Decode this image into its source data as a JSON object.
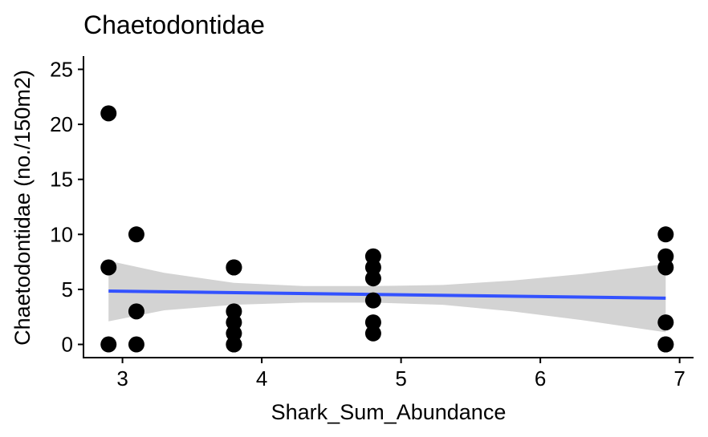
{
  "chart_data": {
    "type": "scatter",
    "title": "Chaetodontidae",
    "xlabel": "Shark_Sum_Abundance",
    "ylabel": "Chaetodontidae (no./150m2)",
    "xlim": [
      2.72,
      7.1
    ],
    "ylim": [
      -1.2,
      26.2
    ],
    "xticks": [
      3,
      4,
      5,
      6,
      7
    ],
    "yticks": [
      0,
      5,
      10,
      15,
      20,
      25
    ],
    "grid": false,
    "legend": "none",
    "points": [
      {
        "x": 2.9,
        "y": 21
      },
      {
        "x": 2.9,
        "y": 7
      },
      {
        "x": 2.9,
        "y": 0
      },
      {
        "x": 3.1,
        "y": 10
      },
      {
        "x": 3.1,
        "y": 3
      },
      {
        "x": 3.1,
        "y": 0
      },
      {
        "x": 3.8,
        "y": 7
      },
      {
        "x": 3.8,
        "y": 7
      },
      {
        "x": 3.8,
        "y": 3
      },
      {
        "x": 3.8,
        "y": 2
      },
      {
        "x": 3.8,
        "y": 1
      },
      {
        "x": 3.8,
        "y": 0
      },
      {
        "x": 3.8,
        "y": 0
      },
      {
        "x": 4.8,
        "y": 8
      },
      {
        "x": 4.8,
        "y": 7
      },
      {
        "x": 4.8,
        "y": 6
      },
      {
        "x": 4.8,
        "y": 4
      },
      {
        "x": 4.8,
        "y": 2
      },
      {
        "x": 4.8,
        "y": 1
      },
      {
        "x": 6.9,
        "y": 10
      },
      {
        "x": 6.9,
        "y": 8
      },
      {
        "x": 6.9,
        "y": 7
      },
      {
        "x": 6.9,
        "y": 2
      },
      {
        "x": 6.9,
        "y": 0
      },
      {
        "x": 6.9,
        "y": 0
      }
    ],
    "trend_line": {
      "x": [
        2.9,
        6.9
      ],
      "y": [
        4.85,
        4.2
      ]
    },
    "confidence_band": {
      "x": [
        2.9,
        3.3,
        3.8,
        4.3,
        4.8,
        5.3,
        5.8,
        6.3,
        6.9
      ],
      "upper": [
        7.6,
        6.5,
        5.6,
        5.3,
        5.3,
        5.4,
        5.8,
        6.4,
        7.3
      ],
      "lower": [
        2.1,
        3.1,
        3.6,
        3.8,
        3.8,
        3.6,
        3.0,
        2.2,
        1.1
      ]
    },
    "colors": {
      "points": "#000000",
      "trend_line": "#3352FF",
      "band": "#D3D3D3",
      "axis": "#000000"
    }
  }
}
